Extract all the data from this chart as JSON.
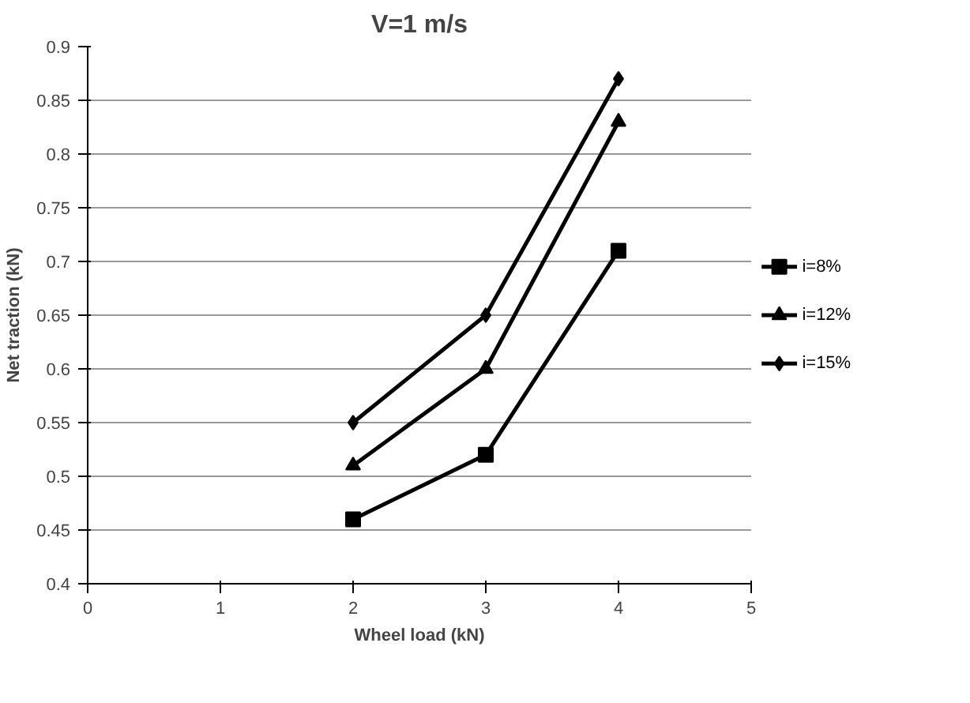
{
  "chart_data": {
    "type": "line",
    "title": "V=1 m/s",
    "xlabel": "Wheel load (kN)",
    "ylabel": "Net traction (kN)",
    "x": [
      2,
      3,
      4
    ],
    "series": [
      {
        "name": "i=8%",
        "color": "#000000",
        "marker": "square",
        "values": [
          0.46,
          0.52,
          0.71
        ]
      },
      {
        "name": "i=12%",
        "color": "#000000",
        "marker": "triangle",
        "values": [
          0.51,
          0.6,
          0.83
        ]
      },
      {
        "name": "i=15%",
        "color": "#000000",
        "marker": "diamond",
        "values": [
          0.55,
          0.65,
          0.87
        ]
      }
    ],
    "xlim": [
      0,
      5
    ],
    "xticks": [
      0,
      1,
      2,
      3,
      4,
      5
    ],
    "ylim": [
      0.4,
      0.9
    ],
    "yticks": [
      0.4,
      0.45,
      0.5,
      0.55,
      0.6,
      0.65,
      0.7,
      0.75,
      0.8,
      0.85,
      0.9
    ],
    "grid": "y",
    "legend": "right",
    "line_style": "solid"
  }
}
